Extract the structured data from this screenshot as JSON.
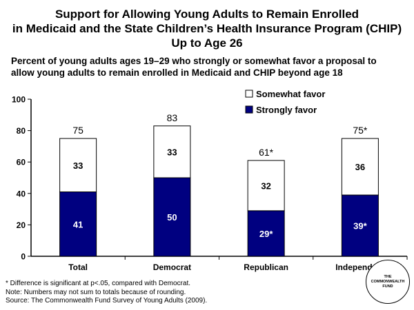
{
  "title": {
    "line1": "Support for Allowing Young Adults to Remain Enrolled",
    "line2": "in Medicaid and the State Children’s Health Insurance Program (CHIP)",
    "line3": "Up to Age 26"
  },
  "subtitle": {
    "line1": "Percent of young adults ages 19–29 who strongly or somewhat favor a proposal to",
    "line2": "allow young adults to remain enrolled in Medicaid and CHIP beyond age 18"
  },
  "chart_data": {
    "type": "bar",
    "stacked": true,
    "categories": [
      "Total",
      "Democrat",
      "Republican",
      "Independent"
    ],
    "series": [
      {
        "name": "Strongly favor",
        "color": "#000080",
        "values": [
          41,
          50,
          29,
          39
        ],
        "labels": [
          "41",
          "50",
          "29*",
          "39*"
        ]
      },
      {
        "name": "Somewhat favor",
        "color": "#ffffff",
        "values": [
          33,
          33,
          32,
          36
        ],
        "labels": [
          "33",
          "33",
          "32",
          "36"
        ]
      }
    ],
    "totals": [
      75,
      83,
      61,
      75
    ],
    "total_labels": [
      "75",
      "83",
      "61*",
      "75*"
    ],
    "legend": [
      "Somewhat favor",
      "Strongly favor"
    ],
    "legend_position": "top-right",
    "yticks": [
      "0",
      "20",
      "40",
      "60",
      "80",
      "100"
    ],
    "ylim": [
      0,
      100
    ],
    "xlabel": "",
    "ylabel": ""
  },
  "footnotes": {
    "line1": "* Difference is significant at p<.05, compared with Democrat.",
    "line2": "Note: Numbers may not sum to totals because of rounding.",
    "line3": "Source: The Commonwealth Fund Survey of Young Adults (2009)."
  },
  "logo": {
    "line1": "THE",
    "line2": "COMMONWEALTH",
    "line3": "FUND"
  }
}
